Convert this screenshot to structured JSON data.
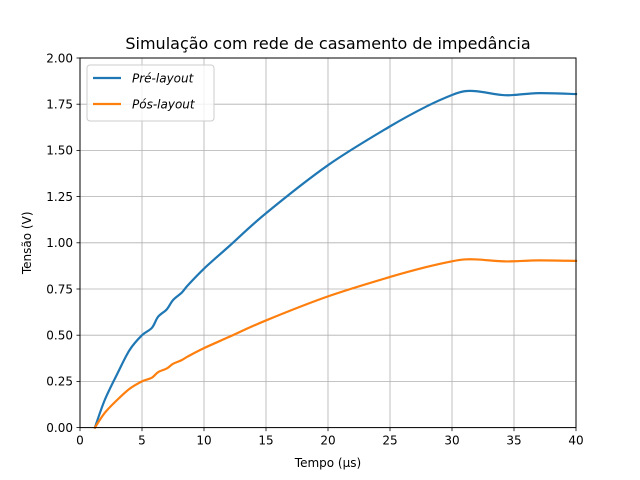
{
  "chart_data": {
    "type": "line",
    "title": "Simulação com rede de casamento de impedância",
    "xlabel": "Tempo (µs)",
    "ylabel": "Tensão (V)",
    "xlim": [
      0,
      40
    ],
    "ylim": [
      0,
      2.0
    ],
    "xticks": [
      0,
      5,
      10,
      15,
      20,
      25,
      30,
      35,
      40
    ],
    "yticks": [
      0.0,
      0.25,
      0.5,
      0.75,
      1.0,
      1.25,
      1.5,
      1.75,
      2.0
    ],
    "xtick_labels": [
      "0",
      "5",
      "10",
      "15",
      "20",
      "25",
      "30",
      "35",
      "40"
    ],
    "ytick_labels": [
      "0.00",
      "0.25",
      "0.50",
      "0.75",
      "1.00",
      "1.25",
      "1.50",
      "1.75",
      "2.00"
    ],
    "grid": true,
    "legend": "top-left",
    "series": [
      {
        "name": "Pré-layout",
        "color": "#1f77b4",
        "points": [
          [
            1.2,
            0.0
          ],
          [
            2,
            0.15
          ],
          [
            3,
            0.29
          ],
          [
            4,
            0.42
          ],
          [
            5,
            0.5
          ],
          [
            5.8,
            0.54
          ],
          [
            6.3,
            0.6
          ],
          [
            7,
            0.64
          ],
          [
            7.5,
            0.69
          ],
          [
            8.2,
            0.73
          ],
          [
            8.7,
            0.77
          ],
          [
            10,
            0.86
          ],
          [
            12,
            0.98
          ],
          [
            15,
            1.16
          ],
          [
            20,
            1.42
          ],
          [
            25,
            1.63
          ],
          [
            28,
            1.74
          ],
          [
            30,
            1.8
          ],
          [
            31,
            1.82
          ],
          [
            32,
            1.82
          ],
          [
            34,
            1.8
          ],
          [
            35,
            1.8
          ],
          [
            37,
            1.81
          ],
          [
            40,
            1.805
          ]
        ]
      },
      {
        "name": "Pós-layout",
        "color": "#ff7f0e",
        "points": [
          [
            1.2,
            0.0
          ],
          [
            2,
            0.08
          ],
          [
            3,
            0.15
          ],
          [
            4,
            0.21
          ],
          [
            5,
            0.25
          ],
          [
            5.8,
            0.27
          ],
          [
            6.3,
            0.3
          ],
          [
            7,
            0.32
          ],
          [
            7.5,
            0.345
          ],
          [
            8.2,
            0.365
          ],
          [
            8.7,
            0.385
          ],
          [
            10,
            0.43
          ],
          [
            12,
            0.49
          ],
          [
            15,
            0.58
          ],
          [
            20,
            0.71
          ],
          [
            25,
            0.815
          ],
          [
            28,
            0.87
          ],
          [
            30,
            0.9
          ],
          [
            31,
            0.91
          ],
          [
            32,
            0.91
          ],
          [
            34,
            0.9
          ],
          [
            35,
            0.9
          ],
          [
            37,
            0.905
          ],
          [
            40,
            0.902
          ]
        ]
      }
    ]
  }
}
